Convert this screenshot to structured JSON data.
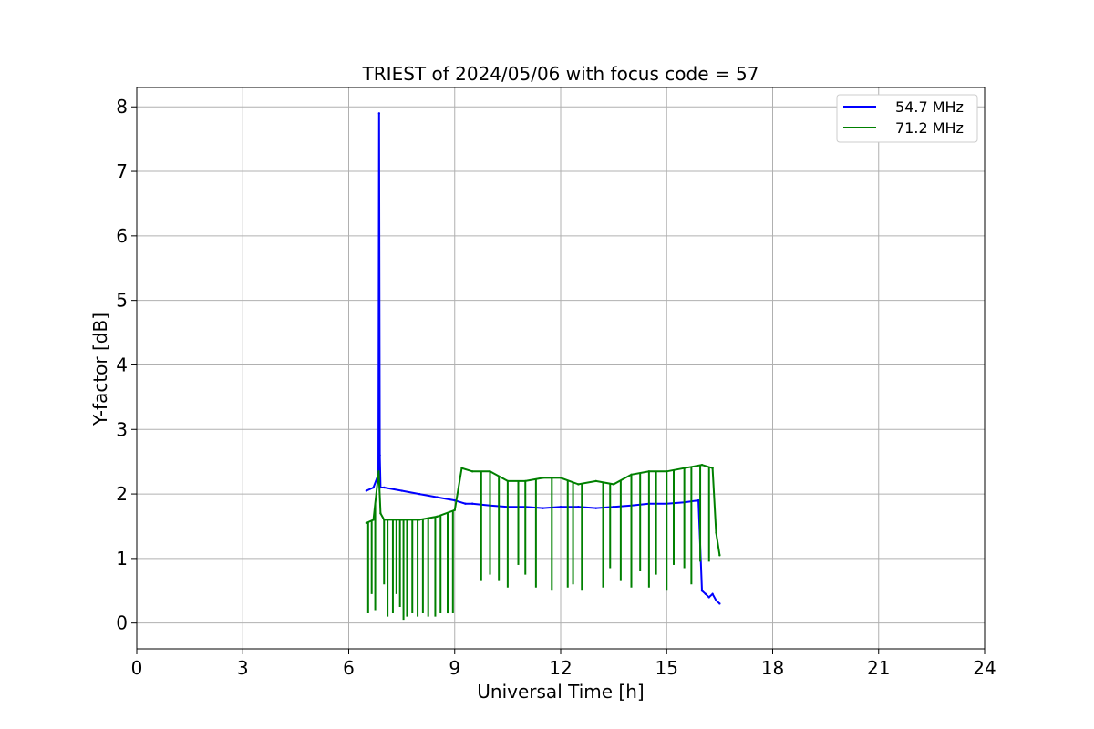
{
  "chart_data": {
    "type": "line",
    "title": "TRIEST of 2024/05/06 with focus code = 57",
    "xlabel": "Universal Time [h]",
    "ylabel": "Y-factor [dB]",
    "xlim": [
      0,
      24
    ],
    "ylim": [
      -0.4,
      8.3
    ],
    "xticks": [
      "0",
      "3",
      "6",
      "9",
      "12",
      "15",
      "18",
      "21",
      "24"
    ],
    "yticks": [
      "0",
      "1",
      "2",
      "3",
      "4",
      "5",
      "6",
      "7",
      "8"
    ],
    "grid": true,
    "legend_position": "top-right",
    "series": [
      {
        "name": "54.7 MHz",
        "color": "#0000ff",
        "x": [
          6.5,
          6.7,
          6.84,
          6.86,
          6.88,
          6.9,
          7.0,
          7.5,
          8.0,
          8.5,
          9.0,
          9.3,
          9.5,
          10.0,
          10.5,
          11.0,
          11.5,
          12.0,
          12.5,
          13.0,
          13.5,
          14.0,
          14.5,
          15.0,
          15.5,
          15.9,
          16.0,
          16.1,
          16.2,
          16.3,
          16.4,
          16.5
        ],
        "y": [
          2.05,
          2.1,
          2.3,
          7.9,
          2.6,
          2.1,
          2.1,
          2.05,
          2.0,
          1.95,
          1.9,
          1.85,
          1.85,
          1.82,
          1.8,
          1.8,
          1.78,
          1.8,
          1.8,
          1.78,
          1.8,
          1.82,
          1.85,
          1.85,
          1.87,
          1.9,
          0.5,
          0.45,
          0.4,
          0.45,
          0.35,
          0.3
        ]
      },
      {
        "name": "71.2 MHz",
        "color": "#008000",
        "x": [
          6.5,
          6.7,
          6.85,
          6.9,
          7.0,
          7.5,
          8.0,
          8.5,
          9.0,
          9.2,
          9.5,
          10.0,
          10.5,
          11.0,
          11.5,
          12.0,
          12.5,
          13.0,
          13.5,
          14.0,
          14.5,
          15.0,
          15.5,
          16.0,
          16.3,
          16.4,
          16.5
        ],
        "y": [
          1.55,
          1.6,
          2.35,
          1.7,
          1.6,
          1.6,
          1.6,
          1.65,
          1.75,
          2.4,
          2.35,
          2.35,
          2.2,
          2.2,
          2.25,
          2.25,
          2.15,
          2.2,
          2.15,
          2.3,
          2.35,
          2.35,
          2.4,
          2.45,
          2.4,
          1.4,
          1.05
        ]
      }
    ],
    "dropouts": {
      "54.7 MHz": [],
      "71.2 MHz": [
        [
          6.55,
          0.15
        ],
        [
          6.65,
          0.45
        ],
        [
          6.75,
          0.2
        ],
        [
          7.0,
          0.6
        ],
        [
          7.1,
          0.1
        ],
        [
          7.25,
          0.15
        ],
        [
          7.35,
          0.45
        ],
        [
          7.45,
          0.25
        ],
        [
          7.55,
          0.05
        ],
        [
          7.65,
          0.1
        ],
        [
          7.8,
          0.15
        ],
        [
          7.95,
          0.1
        ],
        [
          8.1,
          0.15
        ],
        [
          8.25,
          0.1
        ],
        [
          8.45,
          0.1
        ],
        [
          8.6,
          0.15
        ],
        [
          8.8,
          0.15
        ],
        [
          8.95,
          0.15
        ],
        [
          9.75,
          0.65
        ],
        [
          10.0,
          0.75
        ],
        [
          10.25,
          0.65
        ],
        [
          10.5,
          0.55
        ],
        [
          10.8,
          0.9
        ],
        [
          11.0,
          0.75
        ],
        [
          11.3,
          0.55
        ],
        [
          11.75,
          0.5
        ],
        [
          12.2,
          0.55
        ],
        [
          12.35,
          0.6
        ],
        [
          12.6,
          0.5
        ],
        [
          13.2,
          0.55
        ],
        [
          13.4,
          0.85
        ],
        [
          13.7,
          0.65
        ],
        [
          14.0,
          0.55
        ],
        [
          14.25,
          0.8
        ],
        [
          14.5,
          0.55
        ],
        [
          14.7,
          0.75
        ],
        [
          15.0,
          0.5
        ],
        [
          15.2,
          0.9
        ],
        [
          15.5,
          0.85
        ],
        [
          15.7,
          0.6
        ],
        [
          15.95,
          0.95
        ],
        [
          16.2,
          0.95
        ]
      ]
    }
  }
}
